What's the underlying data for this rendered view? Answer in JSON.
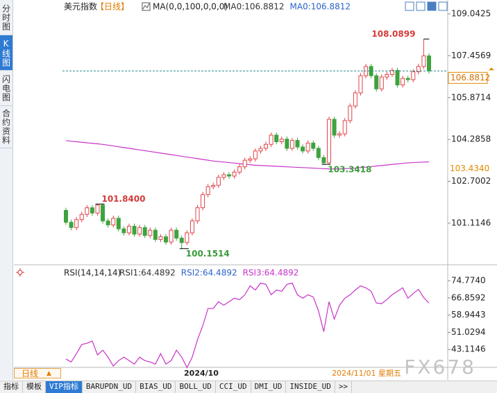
{
  "tabs": [
    "分时图",
    "K线图",
    "闪电图",
    "合约资料"
  ],
  "toolbar": {
    "period": "日线",
    "tabs": [
      "指标",
      "模板",
      "VIP指标",
      "BARUPDN_UD",
      "BIAS_UD",
      "BOLL_UD",
      "CCI_UD",
      "DMI_UD",
      "INSIDE_UD",
      ">>"
    ]
  },
  "watermark": "FX678",
  "x_axis": {
    "label": "2024/10",
    "cursor_date": "2024/11/01 星期五"
  },
  "chart_data": [
    {
      "type": "candlestick",
      "title": "美元指数",
      "period": "【日线】",
      "indicator": "MA(0,0,100,0,0,0)",
      "legend": [
        {
          "name": "MA0:106.8812",
          "color": "#333333"
        },
        {
          "name": "MA0:106.8812",
          "color": "#2a62c9"
        }
      ],
      "up_color": "#e0434a",
      "down_color": "#3ea33e",
      "last_price_color": "#2a8c8c",
      "label_color": "#e08a00",
      "open": [
        101.6,
        101.15,
        100.95,
        101.25,
        101.45,
        101.7,
        101.5,
        101.8,
        101.2,
        101.05,
        101.3,
        100.9,
        100.75,
        101.0,
        100.7,
        100.95,
        100.65,
        100.85,
        100.5,
        100.6,
        100.4,
        100.85,
        100.55,
        100.38,
        100.75,
        101.2,
        101.7,
        102.2,
        102.5,
        102.55,
        102.85,
        102.95,
        102.9,
        103.05,
        103.25,
        103.5,
        103.55,
        103.85,
        103.95,
        104.1,
        104.45,
        104.2,
        104.3,
        103.95,
        104.25,
        104.0,
        103.85,
        104.15,
        103.95,
        103.6,
        103.4,
        105.05,
        104.45,
        104.5,
        105.0,
        105.55,
        106.05,
        106.7,
        107.05,
        106.7,
        106.2,
        106.65,
        106.75,
        106.9,
        106.35,
        106.6,
        106.55,
        106.85,
        107.05,
        107.45
      ],
      "high": [
        101.7,
        101.25,
        101.35,
        101.55,
        101.8,
        101.8,
        101.84,
        101.82,
        101.3,
        101.4,
        101.4,
        101.0,
        101.1,
        101.1,
        101.05,
        101.05,
        100.95,
        100.95,
        100.7,
        100.7,
        100.95,
        100.95,
        100.65,
        100.85,
        101.3,
        101.8,
        102.3,
        102.6,
        102.65,
        102.95,
        103.05,
        103.05,
        103.15,
        103.35,
        103.6,
        103.65,
        103.95,
        104.05,
        104.2,
        104.55,
        104.55,
        104.4,
        104.4,
        104.35,
        104.35,
        104.1,
        104.25,
        104.25,
        104.05,
        103.7,
        105.15,
        105.15,
        104.6,
        105.1,
        105.65,
        106.15,
        106.8,
        107.15,
        107.15,
        106.8,
        106.75,
        106.85,
        107.0,
        107.0,
        106.7,
        106.7,
        106.95,
        107.15,
        108.0899,
        107.55
      ],
      "low": [
        101.05,
        100.85,
        100.85,
        101.15,
        101.35,
        101.4,
        101.4,
        101.1,
        100.95,
        100.95,
        100.8,
        100.65,
        100.65,
        100.6,
        100.6,
        100.55,
        100.55,
        100.4,
        100.4,
        100.3,
        100.3,
        100.45,
        100.1514,
        100.28,
        100.65,
        101.1,
        101.6,
        102.1,
        102.4,
        102.45,
        102.75,
        102.8,
        102.8,
        102.95,
        103.15,
        103.4,
        103.45,
        103.75,
        103.85,
        104.0,
        104.1,
        104.1,
        103.85,
        103.85,
        103.9,
        103.75,
        103.75,
        103.85,
        103.5,
        103.3418,
        103.35,
        104.35,
        104.35,
        104.4,
        104.9,
        105.45,
        105.95,
        106.6,
        106.6,
        106.1,
        106.1,
        106.55,
        106.65,
        106.25,
        106.25,
        106.45,
        106.45,
        106.75,
        106.95,
        106.78
      ],
      "close": [
        101.15,
        100.95,
        101.25,
        101.45,
        101.7,
        101.5,
        101.8,
        101.2,
        101.05,
        101.3,
        100.9,
        100.75,
        101.0,
        100.7,
        100.95,
        100.65,
        100.85,
        100.5,
        100.6,
        100.4,
        100.85,
        100.55,
        100.38,
        100.75,
        101.2,
        101.7,
        102.2,
        102.5,
        102.55,
        102.85,
        102.95,
        102.9,
        103.05,
        103.25,
        103.5,
        103.55,
        103.85,
        103.95,
        104.1,
        104.45,
        104.2,
        104.3,
        103.95,
        104.25,
        104.0,
        103.85,
        104.15,
        103.95,
        103.6,
        103.4,
        105.05,
        104.45,
        104.5,
        105.0,
        105.55,
        106.05,
        106.7,
        107.05,
        106.7,
        106.2,
        106.65,
        106.75,
        106.9,
        106.35,
        106.6,
        106.55,
        106.85,
        107.05,
        107.45,
        106.8812
      ],
      "ma": {
        "color": "#c832c8",
        "value_label": "103.4340",
        "values": [
          104.24,
          104.22,
          104.2,
          104.18,
          104.16,
          104.14,
          104.12,
          104.1,
          104.07,
          104.04,
          104.01,
          103.98,
          103.95,
          103.92,
          103.89,
          103.86,
          103.83,
          103.8,
          103.77,
          103.74,
          103.71,
          103.68,
          103.65,
          103.62,
          103.59,
          103.56,
          103.53,
          103.5,
          103.47,
          103.45,
          103.43,
          103.41,
          103.39,
          103.37,
          103.35,
          103.33,
          103.31,
          103.3,
          103.29,
          103.28,
          103.27,
          103.26,
          103.25,
          103.24,
          103.23,
          103.22,
          103.21,
          103.2,
          103.19,
          103.18,
          103.17,
          103.17,
          103.17,
          103.18,
          103.19,
          103.2,
          103.22,
          103.24,
          103.26,
          103.28,
          103.3,
          103.32,
          103.34,
          103.36,
          103.38,
          103.4,
          103.41,
          103.42,
          103.43,
          103.434
        ]
      },
      "annotations": [
        {
          "label": "101.8400",
          "value": 101.84
        },
        {
          "label": "100.1514",
          "value": 100.1514
        },
        {
          "label": "103.3418",
          "value": 103.3418
        },
        {
          "label": "108.0899",
          "value": 108.0899
        }
      ],
      "ylim": [
        99.645,
        109.3575
      ],
      "yticks": [
        101.1146,
        102.7002,
        104.2858,
        105.8714,
        107.4569,
        109.0425
      ]
    },
    {
      "type": "line",
      "title": "RSI(14,14,14)",
      "legend": [
        {
          "name": "RSI1:64.4892",
          "color": "#333333"
        },
        {
          "name": "RSI2:64.4892",
          "color": "#2a62c9"
        },
        {
          "name": "RSI3:64.4892",
          "color": "#c832c8"
        }
      ],
      "color": "#c832c8",
      "values": [
        38.7,
        37.4,
        41.2,
        45.4,
        46.0,
        47.0,
        40.6,
        42.8,
        39.6,
        35.5,
        38.0,
        39.6,
        38.0,
        36.4,
        39.6,
        38.0,
        37.4,
        36.4,
        41.2,
        36.4,
        38.0,
        42.8,
        39.6,
        34.8,
        39.6,
        47.6,
        54.0,
        62.0,
        62.0,
        65.1,
        63.5,
        65.1,
        66.7,
        66.1,
        68.3,
        72.4,
        70.5,
        73.7,
        73.1,
        68.3,
        70.5,
        69.9,
        73.1,
        73.7,
        68.3,
        66.7,
        68.3,
        67.3,
        60.9,
        51.3,
        65.1,
        57.1,
        63.5,
        66.7,
        68.3,
        70.5,
        72.4,
        71.5,
        69.9,
        64.5,
        64.2,
        66.1,
        68.3,
        69.9,
        71.5,
        66.7,
        68.9,
        70.8,
        67.0,
        64.4892
      ],
      "ylim": [
        34.9,
        81.15
      ],
      "yticks": [
        {
          "value": 43.1146,
          "label": "43.1146"
        },
        {
          "value": 51.0294,
          "label": "51.0294"
        },
        {
          "value": 58.9443,
          "label": "58.9443"
        },
        {
          "value": 66.8592,
          "label": "66.8592"
        },
        {
          "value": 74.774,
          "label": "74.7740"
        }
      ]
    }
  ]
}
